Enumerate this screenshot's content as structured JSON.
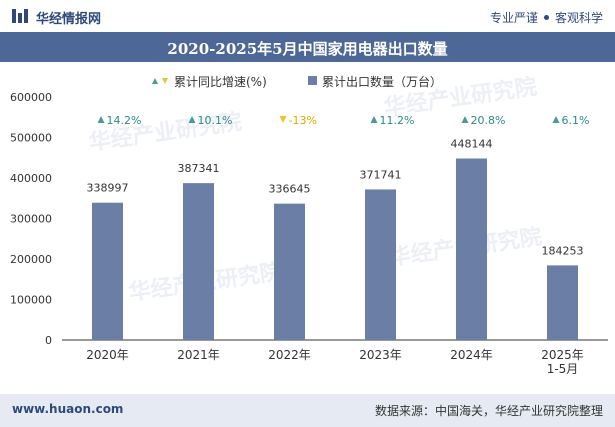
{
  "header": {
    "brand": "华经情报网",
    "tagline_left": "专业严谨",
    "tagline_right": "客观科学"
  },
  "footer": {
    "site": "www.huaon.com",
    "source": "数据来源：中国海关，华经产业研究院整理"
  },
  "watermark": "华经产业研究院",
  "colors": {
    "bar": "#6b7fa6",
    "up_marker": "#4a9a9a",
    "down_marker": "#f2c12e",
    "up_text": "#2b8a8a",
    "down_text": "#e0a800"
  },
  "chart_data": {
    "type": "bar",
    "title": "2020-2025年5月中国家用电器出口数量",
    "categories": [
      "2020年",
      "2021年",
      "2022年",
      "2023年",
      "2024年",
      "2025年\n1-5月"
    ],
    "series": [
      {
        "name": "累计出口数量（万台）",
        "values": [
          338997,
          387341,
          336645,
          371741,
          448144,
          184253
        ]
      }
    ],
    "growth": {
      "name": "累计同比增速(%)",
      "values": [
        "14.2%",
        "10.1%",
        "-13%",
        "11.2%",
        "20.8%",
        "6.1%"
      ],
      "direction": [
        "up",
        "up",
        "down",
        "up",
        "up",
        "up"
      ]
    },
    "ylim": [
      0,
      600000
    ],
    "yticks": [
      0,
      100000,
      200000,
      300000,
      400000,
      500000,
      600000
    ],
    "legend_position": "top"
  }
}
